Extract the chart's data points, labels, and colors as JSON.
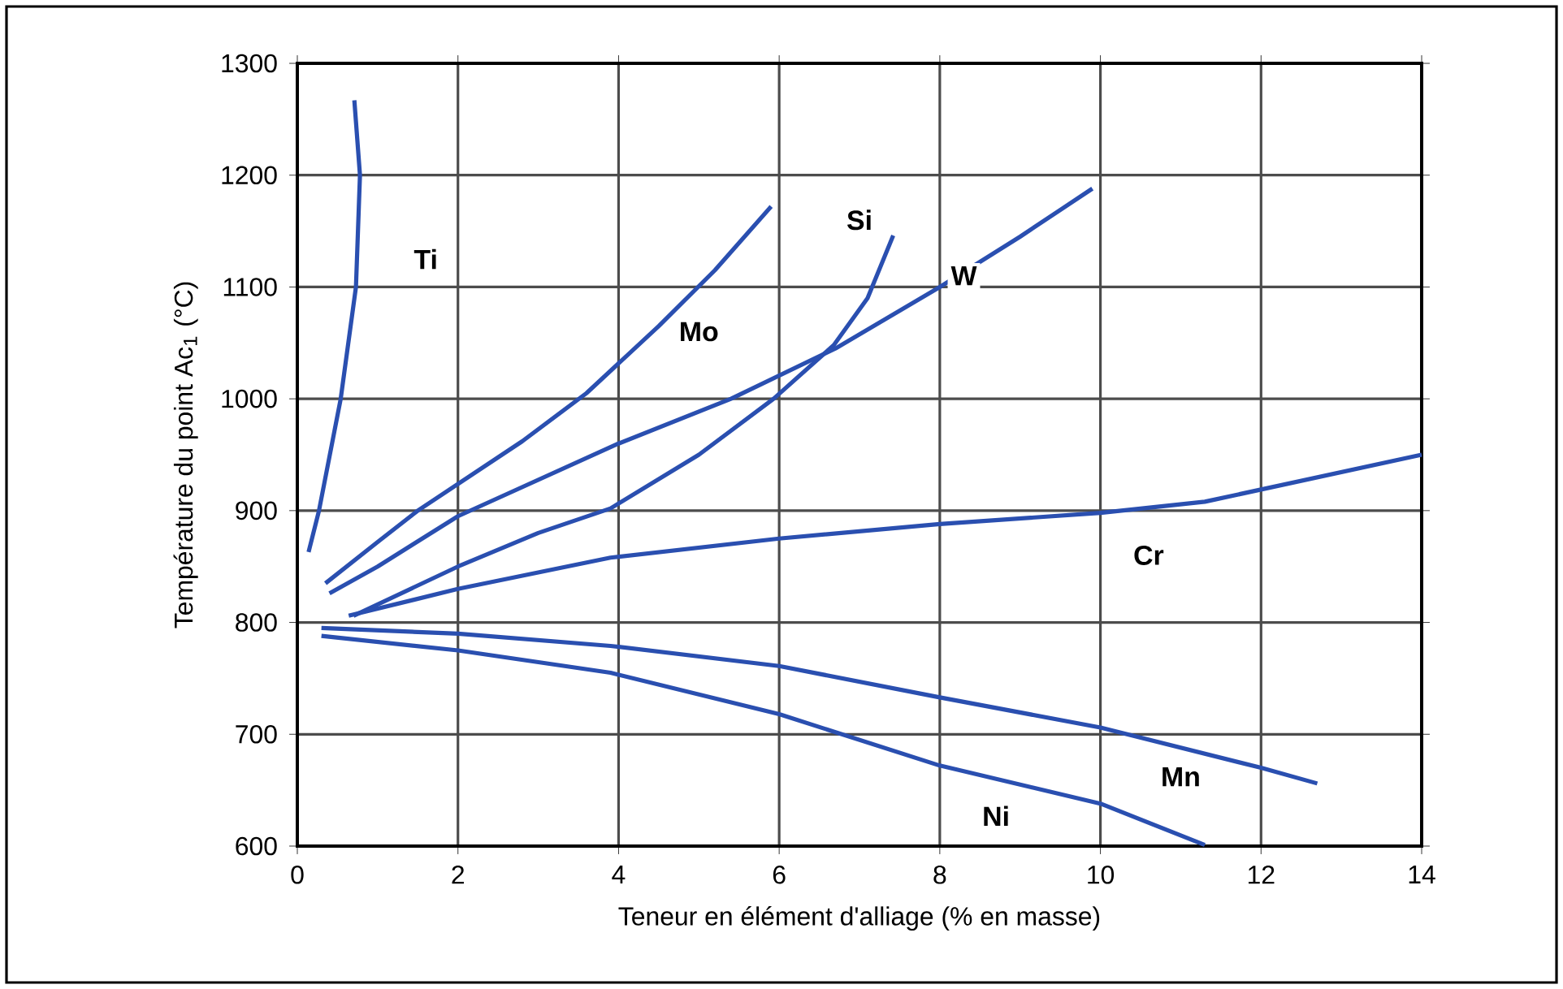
{
  "chart_data": {
    "type": "line",
    "xlabel": "Teneur en élément d'alliage (% en masse)",
    "ylabel": "Température du point Ac$_{1}$ (°C)",
    "xlim": [
      0,
      14
    ],
    "ylim": [
      600,
      1300
    ],
    "xticks": [
      0,
      2,
      4,
      6,
      8,
      10,
      12,
      14
    ],
    "yticks": [
      600,
      700,
      800,
      900,
      1000,
      1100,
      1200,
      1300
    ],
    "grid": true,
    "marker": "none",
    "line_style": "solid",
    "series": [
      {
        "color": "#2a4fb0",
        "x": [
          0.14,
          0.27,
          0.54,
          0.73,
          0.78,
          0.71
        ],
        "values": [
          863,
          900,
          1000,
          1100,
          1200,
          1267
        ]
      },
      {
        "color": "#2a4fb0",
        "x": [
          0.35,
          1,
          1.5,
          2.8,
          3.6,
          4.5,
          5.2,
          5.9
        ],
        "values": [
          835,
          872,
          900,
          962,
          1005,
          1065,
          1115,
          1172
        ]
      },
      {
        "color": "#2a4fb0",
        "x": [
          0.7,
          2,
          3,
          3.9,
          5,
          5.93,
          6.68,
          7.1,
          7.42
        ],
        "values": [
          806,
          850,
          880,
          902,
          950,
          1000,
          1048,
          1090,
          1146
        ]
      },
      {
        "color": "#2a4fb0",
        "x": [
          0.4,
          1,
          2,
          4,
          5.4,
          6.7,
          8,
          9,
          9.9
        ],
        "values": [
          826,
          850,
          895,
          960,
          1000,
          1045,
          1100,
          1145,
          1188
        ]
      },
      {
        "color": "#2a4fb0",
        "x": [
          0.64,
          2,
          3.9,
          6,
          8,
          10,
          11.3,
          14
        ],
        "values": [
          806,
          830,
          858,
          875,
          888,
          898,
          908,
          950
        ]
      },
      {
        "color": "#2a4fb0",
        "x": [
          0.3,
          2,
          3.9,
          6,
          8,
          10,
          12,
          12.7
        ],
        "values": [
          795,
          790,
          779,
          761,
          733,
          706,
          670,
          656
        ]
      },
      {
        "color": "#2a4fb0",
        "x": [
          0.3,
          2,
          3.9,
          6,
          8,
          10,
          11.3
        ],
        "values": [
          788,
          775,
          755,
          718,
          672,
          638,
          601
        ]
      }
    ],
    "annotations": [
      {
        "text": "Ti",
        "x": 1.6,
        "y": 1125
      },
      {
        "text": "Mo",
        "x": 5.0,
        "y": 1060
      },
      {
        "text": "Si",
        "x": 7.0,
        "y": 1160
      },
      {
        "text": "W",
        "x": 8.3,
        "y": 1110
      },
      {
        "text": "Cr",
        "x": 10.6,
        "y": 860
      },
      {
        "text": "Mn",
        "x": 11.0,
        "y": 662
      },
      {
        "text": "Ni",
        "x": 8.7,
        "y": 627
      }
    ]
  }
}
